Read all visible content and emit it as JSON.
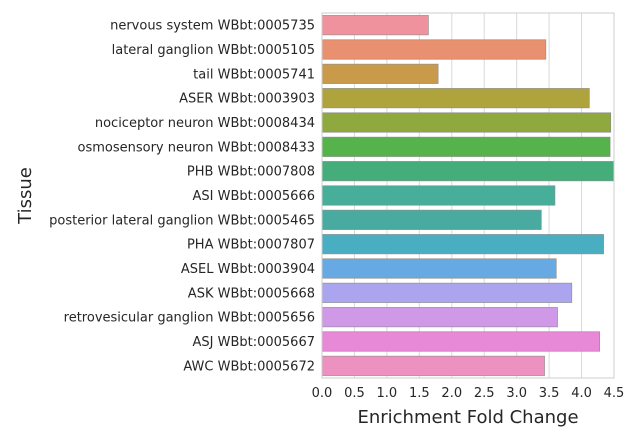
{
  "chart_data": {
    "type": "bar",
    "orientation": "horizontal",
    "xlabel": "Enrichment Fold Change",
    "ylabel": "Tissue",
    "xlim": [
      0,
      4.5
    ],
    "xticks": [
      "0.0",
      "0.5",
      "1.0",
      "1.5",
      "2.0",
      "2.5",
      "3.0",
      "3.5",
      "4.0",
      "4.5"
    ],
    "grid": true,
    "categories": [
      "nervous system WBbt:0005735",
      "lateral ganglion WBbt:0005105",
      "tail WBbt:0005741",
      "ASER WBbt:0003903",
      "nociceptor neuron WBbt:0008434",
      "osmosensory neuron WBbt:0008433",
      "PHB WBbt:0007808",
      "ASI WBbt:0005666",
      "posterior lateral ganglion WBbt:0005465",
      "PHA WBbt:0007807",
      "ASEL WBbt:0003904",
      "ASK WBbt:0005668",
      "retrovesicular ganglion WBbt:0005656",
      "ASJ WBbt:0005667",
      "AWC WBbt:0005672"
    ],
    "values": [
      1.64,
      3.45,
      1.79,
      4.12,
      4.45,
      4.44,
      4.49,
      3.59,
      3.38,
      4.34,
      3.61,
      3.85,
      3.63,
      4.28,
      3.43
    ],
    "colors": [
      "#f0929d",
      "#e8906f",
      "#c89a4a",
      "#afa33e",
      "#8fa93e",
      "#56b24b",
      "#45ad7a",
      "#47ae9a",
      "#49ab9f",
      "#4aaec2",
      "#67aae3",
      "#aaa5ee",
      "#cf99e8",
      "#e889d8",
      "#ed91c0"
    ]
  }
}
